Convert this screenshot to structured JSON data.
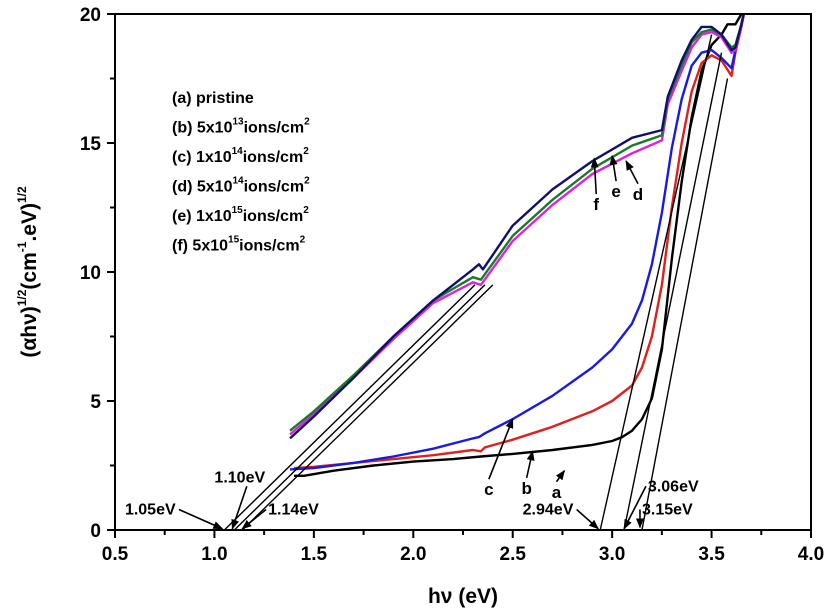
{
  "chart_data": {
    "type": "line",
    "title": "",
    "xlabel": "hν (eV)",
    "ylabel_main": "(αhν)",
    "ylabel_sup1": "1/2",
    "ylabel_unit": "(cm",
    "ylabel_sup2": "-1",
    "ylabel_unit2": ".eV)",
    "ylabel_sup3": "1/2",
    "xlim": [
      0.5,
      4.0
    ],
    "ylim": [
      0,
      20
    ],
    "xticks": [
      "0.5",
      "1.0",
      "1.5",
      "2.0",
      "2.5",
      "3.0",
      "3.5",
      "4.0"
    ],
    "xtick_values": [
      0.5,
      1.0,
      1.5,
      2.0,
      2.5,
      3.0,
      3.5,
      4.0
    ],
    "yticks": [
      "0",
      "5",
      "10",
      "15",
      "20"
    ],
    "ytick_values": [
      0,
      5,
      10,
      15,
      20
    ],
    "grid": false,
    "legend": {
      "placement": "top-left",
      "entries": [
        {
          "prefix": "(a) pristine",
          "exp": "",
          "suffix": "",
          "sup2": ""
        },
        {
          "prefix": "(b) 5x10",
          "exp": "13",
          "suffix": "ions/cm",
          "sup2": "2"
        },
        {
          "prefix": "(c) 1x10",
          "exp": "14",
          "suffix": "ions/cm",
          "sup2": "2"
        },
        {
          "prefix": "(d) 5x10",
          "exp": "14",
          "suffix": "ions/cm",
          "sup2": "2"
        },
        {
          "prefix": "(e) 1x10",
          "exp": "15",
          "suffix": "ions/cm",
          "sup2": "2"
        },
        {
          "prefix": "(f) 5x10",
          "exp": "15",
          "suffix": "ions/cm",
          "sup2": "2"
        }
      ]
    },
    "series": [
      {
        "name": "a",
        "label": "(a) pristine",
        "color": "#000000",
        "x": [
          1.4,
          1.45,
          1.6,
          1.8,
          2.0,
          2.2,
          2.34,
          2.5,
          2.7,
          2.9,
          3.0,
          3.05,
          3.1,
          3.15,
          3.2,
          3.25,
          3.3,
          3.35,
          3.4,
          3.45,
          3.5,
          3.55,
          3.58,
          3.62,
          3.65,
          3.67
        ],
        "y": [
          2.1,
          2.1,
          2.3,
          2.5,
          2.65,
          2.75,
          2.85,
          2.95,
          3.1,
          3.3,
          3.45,
          3.6,
          3.85,
          4.3,
          5.1,
          7.0,
          10.5,
          13.5,
          16.0,
          17.8,
          18.8,
          19.2,
          19.6,
          19.6,
          20.0,
          20.3
        ]
      },
      {
        "name": "b",
        "label": "(b) 5x10^13 ions/cm^2",
        "color": "#e0201c",
        "x": [
          1.4,
          1.5,
          1.7,
          1.9,
          2.1,
          2.3,
          2.34,
          2.36,
          2.5,
          2.7,
          2.9,
          3.0,
          3.1,
          3.15,
          3.2,
          3.25,
          3.3,
          3.35,
          3.4,
          3.45,
          3.5,
          3.55,
          3.6,
          3.62,
          3.65,
          3.67
        ],
        "y": [
          2.4,
          2.45,
          2.6,
          2.75,
          2.9,
          3.1,
          3.05,
          3.2,
          3.5,
          4.0,
          4.6,
          5.0,
          5.6,
          6.3,
          7.5,
          9.5,
          12.5,
          15.0,
          17.0,
          18.1,
          18.4,
          18.2,
          17.6,
          18.5,
          19.5,
          20.3
        ]
      },
      {
        "name": "c",
        "label": "(c) 1x10^14 ions/cm^2",
        "color": "#1a1ae0",
        "x": [
          1.38,
          1.5,
          1.7,
          1.9,
          2.1,
          2.3,
          2.33,
          2.36,
          2.5,
          2.7,
          2.9,
          3.0,
          3.1,
          3.15,
          3.2,
          3.25,
          3.3,
          3.35,
          3.4,
          3.45,
          3.5,
          3.55,
          3.6,
          3.62,
          3.65,
          3.67
        ],
        "y": [
          2.35,
          2.4,
          2.6,
          2.85,
          3.15,
          3.55,
          3.6,
          3.75,
          4.3,
          5.2,
          6.3,
          7.0,
          8.0,
          8.9,
          10.3,
          12.3,
          14.8,
          16.7,
          18.0,
          18.5,
          18.6,
          18.3,
          17.9,
          18.6,
          19.6,
          20.3
        ]
      },
      {
        "name": "d",
        "label": "(d) 5x10^14 ions/cm^2",
        "color": "#e020e0",
        "x": [
          1.38,
          1.5,
          1.7,
          1.9,
          2.1,
          2.3,
          2.34,
          2.5,
          2.7,
          2.9,
          3.1,
          3.25,
          3.28,
          3.35,
          3.4,
          3.45,
          3.5,
          3.55,
          3.6,
          3.62,
          3.65,
          3.67
        ],
        "y": [
          3.7,
          4.5,
          5.9,
          7.4,
          8.8,
          9.6,
          9.5,
          11.2,
          12.6,
          13.8,
          14.6,
          15.1,
          16.5,
          17.8,
          18.7,
          19.2,
          19.3,
          19.1,
          18.5,
          18.6,
          19.5,
          20.3
        ]
      },
      {
        "name": "e",
        "label": "(e) 1x10^15 ions/cm^2",
        "color": "#1a7a2a",
        "x": [
          1.38,
          1.5,
          1.7,
          1.9,
          2.1,
          2.3,
          2.34,
          2.5,
          2.7,
          2.9,
          3.1,
          3.25,
          3.28,
          3.35,
          3.4,
          3.45,
          3.5,
          3.55,
          3.6,
          3.62,
          3.65,
          3.67
        ],
        "y": [
          3.85,
          4.6,
          6.0,
          7.5,
          8.9,
          9.8,
          9.7,
          11.4,
          12.8,
          14.0,
          14.9,
          15.3,
          16.7,
          18.0,
          18.9,
          19.3,
          19.4,
          19.2,
          18.7,
          18.8,
          19.6,
          20.3
        ]
      },
      {
        "name": "f",
        "label": "(f) 5x10^15 ions/cm^2",
        "color": "#10106a",
        "x": [
          1.38,
          1.5,
          1.7,
          1.9,
          2.1,
          2.3,
          2.33,
          2.35,
          2.5,
          2.7,
          2.9,
          3.1,
          3.25,
          3.28,
          3.35,
          3.4,
          3.45,
          3.5,
          3.55,
          3.6,
          3.62,
          3.65,
          3.67
        ],
        "y": [
          3.55,
          4.4,
          5.9,
          7.5,
          8.9,
          10.1,
          10.3,
          10.1,
          11.8,
          13.2,
          14.3,
          15.2,
          15.5,
          16.8,
          18.2,
          19.0,
          19.5,
          19.5,
          19.2,
          18.6,
          18.7,
          19.6,
          20.3
        ]
      }
    ],
    "tangent_lines": [
      {
        "from": [
          1.05,
          0
        ],
        "to": [
          2.31,
          9.5
        ]
      },
      {
        "from": [
          1.1,
          0
        ],
        "to": [
          2.36,
          9.5
        ]
      },
      {
        "from": [
          1.14,
          0
        ],
        "to": [
          2.4,
          9.5
        ]
      },
      {
        "from": [
          2.94,
          0
        ],
        "to": [
          3.5,
          19.2
        ]
      },
      {
        "from": [
          3.06,
          0
        ],
        "to": [
          3.55,
          18.5
        ]
      },
      {
        "from": [
          3.15,
          0
        ],
        "to": [
          3.58,
          17.5
        ]
      }
    ],
    "annotations": [
      {
        "text": "1.05eV",
        "text_at": [
          0.55,
          0.6
        ],
        "arrow_to": [
          1.04,
          0.05
        ]
      },
      {
        "text": "1.10eV",
        "text_at": [
          1.0,
          1.85
        ],
        "arrow_to": [
          1.09,
          0.05
        ]
      },
      {
        "text": "1.14eV",
        "text_at": [
          1.27,
          0.6
        ],
        "arrow_to": [
          1.14,
          0.05
        ]
      },
      {
        "text": "2.94eV",
        "text_at": [
          2.55,
          0.6
        ],
        "arrow_to": [
          2.93,
          0.05
        ]
      },
      {
        "text": "3.06eV",
        "text_at": [
          3.18,
          1.5
        ],
        "arrow_to": [
          3.06,
          0.05
        ]
      },
      {
        "text": "3.15eV",
        "text_at": [
          3.15,
          0.6
        ],
        "arrow_to": [
          3.14,
          0.1
        ]
      },
      {
        "text": "a",
        "text_at": [
          2.72,
          1.25
        ],
        "arrow_to": [
          2.76,
          2.3
        ]
      },
      {
        "text": "b",
        "text_at": [
          2.57,
          1.4
        ],
        "arrow_to": [
          2.6,
          3.05
        ]
      },
      {
        "text": "c",
        "text_at": [
          2.38,
          1.35
        ],
        "arrow_to": [
          2.5,
          4.3
        ]
      },
      {
        "text": "d",
        "text_at": [
          3.13,
          12.8
        ],
        "arrow_to": [
          3.07,
          14.3
        ]
      },
      {
        "text": "e",
        "text_at": [
          3.02,
          12.9
        ],
        "arrow_to": [
          3.0,
          14.5
        ]
      },
      {
        "text": "f",
        "text_at": [
          2.92,
          12.4
        ],
        "arrow_to": [
          2.91,
          14.4
        ]
      }
    ]
  }
}
